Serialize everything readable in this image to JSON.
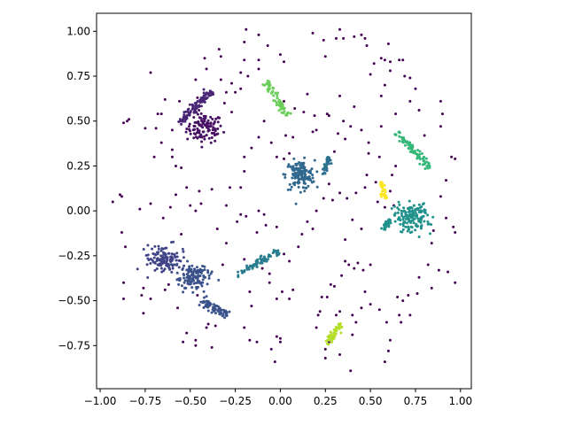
{
  "chart_data": {
    "type": "scatter",
    "title": "",
    "xlabel": "",
    "ylabel": "",
    "xlim": [
      -1.02,
      1.06
    ],
    "ylim": [
      -0.99,
      1.1
    ],
    "x_ticks": [
      -1.0,
      -0.75,
      -0.5,
      -0.25,
      0.0,
      0.25,
      0.5,
      0.75,
      1.0
    ],
    "x_tick_labels": [
      "−1.00",
      "−0.75",
      "−0.50",
      "−0.25",
      "0.00",
      "0.25",
      "0.50",
      "0.75",
      "1.00"
    ],
    "y_ticks": [
      -0.75,
      -0.5,
      -0.25,
      0.0,
      0.25,
      0.5,
      0.75,
      1.0
    ],
    "y_tick_labels": [
      "−0.75",
      "−0.50",
      "−0.25",
      "0.00",
      "0.25",
      "0.50",
      "0.75",
      "1.00"
    ],
    "grid": false,
    "legend": "none",
    "noise": {
      "color": "#440154",
      "points": [
        [
          -0.93,
          0.05
        ],
        [
          -0.89,
          0.09
        ],
        [
          -0.88,
          0.08
        ],
        [
          -0.88,
          -0.12
        ],
        [
          -0.86,
          -0.2
        ],
        [
          -0.87,
          -0.4
        ],
        [
          -0.87,
          -0.49
        ],
        [
          -0.76,
          -0.43
        ],
        [
          -0.76,
          -0.57
        ],
        [
          -0.77,
          -0.47
        ],
        [
          -0.72,
          -0.49
        ],
        [
          -0.84,
          0.51
        ],
        [
          -0.85,
          0.5
        ],
        [
          -0.87,
          0.49
        ],
        [
          -0.72,
          0.77
        ],
        [
          -0.68,
          0.54
        ],
        [
          -0.6,
          0.45
        ],
        [
          -0.66,
          0.38
        ],
        [
          -0.6,
          0.34
        ],
        [
          -0.66,
          0.54
        ],
        [
          -0.6,
          0.3
        ],
        [
          -0.7,
          0.3
        ],
        [
          -0.75,
          0.46
        ],
        [
          -0.69,
          0.46
        ],
        [
          -0.58,
          0.25
        ],
        [
          -0.55,
          0.24
        ],
        [
          -0.52,
          0.13
        ],
        [
          -0.45,
          0.11
        ],
        [
          -0.58,
          0.09
        ],
        [
          -0.5,
          0.03
        ],
        [
          -0.47,
          0.0
        ],
        [
          -0.44,
          0.04
        ],
        [
          -0.38,
          0.12
        ],
        [
          -0.61,
          0.02
        ],
        [
          -0.3,
          0.03
        ],
        [
          -0.28,
          0.13
        ],
        [
          -0.22,
          0.13
        ],
        [
          -0.22,
          -0.02
        ],
        [
          -0.24,
          -0.06
        ],
        [
          -0.19,
          -0.03
        ],
        [
          -0.12,
          0.0
        ],
        [
          -0.09,
          -0.02
        ],
        [
          -0.13,
          -0.12
        ],
        [
          -0.08,
          -0.08
        ],
        [
          -0.02,
          -0.09
        ],
        [
          -0.2,
          -0.27
        ],
        [
          -0.1,
          -0.32
        ],
        [
          -0.06,
          -0.4
        ],
        [
          -0.06,
          -0.35
        ],
        [
          -0.17,
          -0.45
        ],
        [
          -0.02,
          -0.49
        ],
        [
          0.01,
          -0.45
        ],
        [
          0.07,
          -0.44
        ],
        [
          0.05,
          -0.49
        ],
        [
          -0.16,
          -0.53
        ],
        [
          -0.2,
          -0.65
        ],
        [
          -0.17,
          -0.72
        ],
        [
          -0.13,
          -0.73
        ],
        [
          -0.02,
          -0.7
        ],
        [
          0.0,
          -0.71
        ],
        [
          0.0,
          -0.73
        ],
        [
          -0.03,
          -0.84
        ],
        [
          -0.05,
          -0.77
        ],
        [
          -0.36,
          -0.64
        ],
        [
          -0.4,
          -0.63
        ],
        [
          -0.41,
          -0.65
        ],
        [
          -0.38,
          -0.76
        ],
        [
          -0.52,
          -0.68
        ],
        [
          -0.46,
          -0.47
        ],
        [
          -0.57,
          -0.54
        ],
        [
          -0.62,
          -0.41
        ],
        [
          -0.64,
          -0.44
        ],
        [
          -0.47,
          -0.75
        ],
        [
          -0.54,
          -0.73
        ],
        [
          -0.47,
          -0.72
        ],
        [
          -0.2,
          0.3
        ],
        [
          -0.2,
          0.22
        ],
        [
          -0.16,
          0.35
        ],
        [
          -0.12,
          0.41
        ],
        [
          -0.09,
          0.5
        ],
        [
          -0.05,
          0.38
        ],
        [
          -0.02,
          0.3
        ],
        [
          0.02,
          0.29
        ],
        [
          0.03,
          0.42
        ],
        [
          0.05,
          0.32
        ],
        [
          0.07,
          0.41
        ],
        [
          0.02,
          0.61
        ],
        [
          0.08,
          0.57
        ],
        [
          0.13,
          0.55
        ],
        [
          0.19,
          0.53
        ],
        [
          0.15,
          0.65
        ],
        [
          0.18,
          0.44
        ],
        [
          0.2,
          0.45
        ],
        [
          0.26,
          0.54
        ],
        [
          0.27,
          0.53
        ],
        [
          -0.27,
          0.55
        ],
        [
          -0.31,
          0.6
        ],
        [
          -0.25,
          0.66
        ],
        [
          -0.22,
          0.68
        ],
        [
          -0.27,
          0.71
        ],
        [
          -0.22,
          0.77
        ],
        [
          -0.2,
          0.84
        ],
        [
          -0.12,
          0.84
        ],
        [
          -0.12,
          0.79
        ],
        [
          -0.18,
          0.75
        ],
        [
          -0.3,
          0.66
        ],
        [
          -0.33,
          0.86
        ],
        [
          -0.34,
          0.9
        ],
        [
          -0.41,
          0.79
        ],
        [
          -0.47,
          0.73
        ],
        [
          -0.42,
          0.85
        ],
        [
          -0.33,
          0.73
        ],
        [
          -0.2,
          0.94
        ],
        [
          -0.19,
          1.01
        ],
        [
          -0.12,
          0.98
        ],
        [
          -0.07,
          0.92
        ],
        [
          0.0,
          0.87
        ],
        [
          0.02,
          0.83
        ],
        [
          0.18,
          0.99
        ],
        [
          0.24,
          0.95
        ],
        [
          0.25,
          0.86
        ],
        [
          0.31,
          0.96
        ],
        [
          0.33,
          1.01
        ],
        [
          0.35,
          0.96
        ],
        [
          0.41,
          0.97
        ],
        [
          0.45,
          0.98
        ],
        [
          0.47,
          0.96
        ],
        [
          0.48,
          0.92
        ],
        [
          0.5,
          0.76
        ],
        [
          0.52,
          0.82
        ],
        [
          0.56,
          0.85
        ],
        [
          0.58,
          0.84
        ],
        [
          0.6,
          0.93
        ],
        [
          0.61,
          0.83
        ],
        [
          0.61,
          0.78
        ],
        [
          0.66,
          0.84
        ],
        [
          0.68,
          0.84
        ],
        [
          0.69,
          0.75
        ],
        [
          0.72,
          0.74
        ],
        [
          0.72,
          0.61
        ],
        [
          0.75,
          0.68
        ],
        [
          0.77,
          0.56
        ],
        [
          0.8,
          0.42
        ],
        [
          0.89,
          0.61
        ],
        [
          0.9,
          0.54
        ],
        [
          0.89,
          0.47
        ],
        [
          0.95,
          0.3
        ],
        [
          0.97,
          0.29
        ],
        [
          0.92,
          0.17
        ],
        [
          0.89,
          0.08
        ],
        [
          0.92,
          -0.04
        ],
        [
          0.96,
          -0.09
        ],
        [
          0.97,
          -0.12
        ],
        [
          0.85,
          -0.11
        ],
        [
          0.84,
          -0.18
        ],
        [
          0.82,
          -0.3
        ],
        [
          0.88,
          -0.33
        ],
        [
          0.93,
          -0.34
        ],
        [
          0.97,
          -0.4
        ],
        [
          0.84,
          -0.43
        ],
        [
          0.77,
          -0.37
        ],
        [
          0.76,
          -0.46
        ],
        [
          0.71,
          -0.47
        ],
        [
          0.68,
          -0.5
        ],
        [
          0.65,
          -0.48
        ],
        [
          0.66,
          -0.58
        ],
        [
          0.72,
          -0.58
        ],
        [
          0.67,
          -0.62
        ],
        [
          0.61,
          -0.72
        ],
        [
          0.6,
          -0.78
        ],
        [
          0.58,
          -0.84
        ],
        [
          0.59,
          -0.62
        ],
        [
          0.55,
          -0.55
        ],
        [
          0.5,
          -0.52
        ],
        [
          0.47,
          -0.45
        ],
        [
          0.46,
          -0.33
        ],
        [
          0.5,
          -0.3
        ],
        [
          0.43,
          -0.29
        ],
        [
          0.41,
          -0.32
        ],
        [
          0.38,
          -0.3
        ],
        [
          0.36,
          -0.28
        ],
        [
          0.34,
          -0.36
        ],
        [
          0.3,
          -0.42
        ],
        [
          0.28,
          -0.41
        ],
        [
          0.26,
          -0.48
        ],
        [
          0.23,
          -0.48
        ],
        [
          0.22,
          -0.56
        ],
        [
          0.21,
          -0.58
        ],
        [
          0.2,
          -0.65
        ],
        [
          0.31,
          -0.58
        ],
        [
          0.33,
          -0.56
        ],
        [
          0.4,
          -0.58
        ],
        [
          0.4,
          -0.69
        ],
        [
          0.42,
          -0.62
        ],
        [
          0.45,
          -0.54
        ],
        [
          0.39,
          -0.89
        ],
        [
          0.33,
          -0.8
        ],
        [
          0.25,
          -0.82
        ],
        [
          0.25,
          -0.77
        ],
        [
          0.27,
          -0.73
        ],
        [
          0.36,
          -0.16
        ],
        [
          0.45,
          -0.1
        ],
        [
          0.4,
          -0.05
        ],
        [
          0.33,
          0.1
        ],
        [
          0.37,
          0.07
        ],
        [
          0.42,
          0.1
        ],
        [
          0.47,
          0.13
        ],
        [
          0.48,
          0.2
        ],
        [
          0.49,
          0.32
        ],
        [
          0.53,
          0.16
        ],
        [
          0.54,
          0.05
        ],
        [
          0.58,
          0.02
        ],
        [
          0.63,
          0.03
        ],
        [
          0.61,
          0.11
        ],
        [
          0.62,
          0.2
        ],
        [
          0.64,
          0.25
        ],
        [
          0.55,
          0.3
        ],
        [
          0.49,
          0.38
        ],
        [
          0.45,
          0.45
        ],
        [
          0.39,
          0.47
        ],
        [
          0.36,
          0.4
        ],
        [
          0.35,
          0.5
        ],
        [
          0.33,
          0.64
        ],
        [
          0.41,
          0.58
        ],
        [
          0.56,
          0.64
        ],
        [
          0.58,
          0.7
        ],
        [
          0.64,
          0.54
        ],
        [
          0.56,
          0.47
        ],
        [
          0.32,
          0.43
        ],
        [
          0.3,
          0.33
        ],
        [
          0.27,
          0.15
        ],
        [
          0.29,
          0.06
        ],
        [
          0.24,
          0.07
        ],
        [
          0.2,
          0.0
        ],
        [
          0.18,
          -0.1
        ],
        [
          0.15,
          -0.06
        ],
        [
          0.12,
          -0.13
        ],
        [
          0.1,
          -0.2
        ],
        [
          0.05,
          -0.28
        ],
        [
          0.02,
          -0.24
        ],
        [
          -0.72,
          0.04
        ],
        [
          -0.78,
          0.01
        ],
        [
          -0.65,
          -0.04
        ],
        [
          -0.55,
          -0.13
        ],
        [
          -0.35,
          -0.1
        ],
        [
          -0.32,
          -0.3
        ],
        [
          -0.3,
          -0.18
        ],
        [
          -0.64,
          0.62
        ],
        [
          -0.56,
          0.61
        ],
        [
          -0.46,
          0.63
        ]
      ]
    },
    "clusters": [
      {
        "shape": "blob",
        "color": "#471063",
        "center": [
          -0.42,
          0.46
        ],
        "spread": [
          0.05,
          0.04
        ],
        "count": 110
      },
      {
        "shape": "line",
        "color": "#482475",
        "from": [
          -0.56,
          0.49
        ],
        "to": [
          -0.38,
          0.67
        ],
        "jitter": 0.012,
        "count": 90
      },
      {
        "shape": "blob",
        "color": "#414487",
        "center": [
          -0.64,
          -0.27
        ],
        "spread": [
          0.045,
          0.035
        ],
        "count": 130
      },
      {
        "shape": "blob",
        "color": "#3b528b",
        "center": [
          -0.49,
          -0.37
        ],
        "spread": [
          0.045,
          0.04
        ],
        "count": 130
      },
      {
        "shape": "line",
        "color": "#3b528b",
        "from": [
          -0.44,
          -0.5
        ],
        "to": [
          -0.29,
          -0.58
        ],
        "jitter": 0.012,
        "count": 70
      },
      {
        "shape": "blob",
        "color": "#31688e",
        "center": [
          0.11,
          0.2
        ],
        "spread": [
          0.04,
          0.04
        ],
        "count": 140
      },
      {
        "shape": "line",
        "color": "#2c728e",
        "from": [
          0.24,
          0.2
        ],
        "to": [
          0.27,
          0.3
        ],
        "jitter": 0.008,
        "count": 40
      },
      {
        "shape": "line",
        "color": "#287d8e",
        "from": [
          -0.24,
          -0.36
        ],
        "to": [
          -0.01,
          -0.22
        ],
        "jitter": 0.01,
        "count": 70
      },
      {
        "shape": "blob",
        "color": "#21918c",
        "center": [
          0.73,
          -0.04
        ],
        "spread": [
          0.05,
          0.04
        ],
        "count": 150
      },
      {
        "shape": "line",
        "color": "#21918c",
        "from": [
          0.57,
          -0.11
        ],
        "to": [
          0.61,
          -0.05
        ],
        "jitter": 0.008,
        "count": 25
      },
      {
        "shape": "line",
        "color": "#35b779",
        "from": [
          0.64,
          0.44
        ],
        "to": [
          0.83,
          0.24
        ],
        "jitter": 0.01,
        "count": 80
      },
      {
        "shape": "line",
        "color": "#6ccd5a",
        "from": [
          -0.08,
          0.72
        ],
        "to": [
          0.04,
          0.53
        ],
        "jitter": 0.01,
        "count": 70
      },
      {
        "shape": "line",
        "color": "#b5de2b",
        "from": [
          0.26,
          -0.74
        ],
        "to": [
          0.34,
          -0.63
        ],
        "jitter": 0.01,
        "count": 50
      },
      {
        "shape": "line",
        "color": "#fde725",
        "from": [
          0.56,
          0.16
        ],
        "to": [
          0.58,
          0.07
        ],
        "jitter": 0.008,
        "count": 35
      }
    ]
  }
}
